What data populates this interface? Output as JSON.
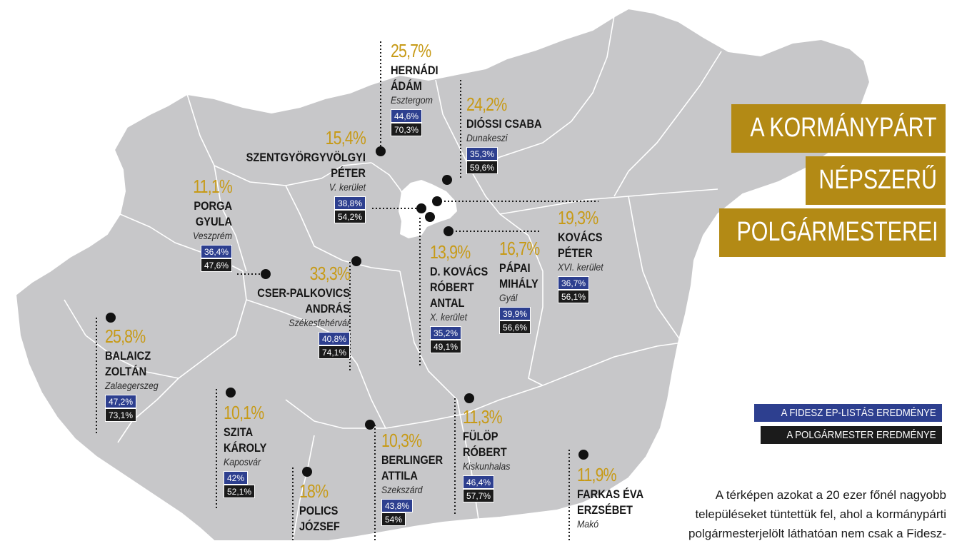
{
  "title": {
    "line1": "A KORMÁNYPÁRT",
    "line2": "NÉPSZERŰ",
    "line3": "POLGÁRMESTEREI"
  },
  "legend": {
    "ep": "A FIDESZ EP-LISTÁS EREDMÉNYE",
    "mayor": "A POLGÁRMESTER EREDMÉNYE"
  },
  "description": {
    "line1": "A térképen azokat a 20 ezer főnél nagyobb",
    "line2": "településeket tüntettük fel, ahol a kormánypárti",
    "line3": "polgármesterjelölt láthatóan nem csak a Fidesz-"
  },
  "colors": {
    "map_fill": "#c7c7c9",
    "percent_gold": "#c79a16",
    "ep_blue": "#2d3f8f",
    "mayor_black": "#1b1b1b",
    "title_gold": "#b38a15"
  },
  "mayors": [
    {
      "pct": "25,7%",
      "name1": "HERNÁDI",
      "name2": "ÁDÁM",
      "place": "Esztergom",
      "ep": "44,6%",
      "mayor": "70,3%"
    },
    {
      "pct": "24,2%",
      "name1": "DIÓSSI CSABA",
      "place": "Dunakeszi",
      "ep": "35,3%",
      "mayor": "59,6%"
    },
    {
      "pct": "15,4%",
      "name1": "SZENTGYÖRGYVÖLGYI",
      "name2": "PÉTER",
      "place": "V. kerület",
      "ep": "38,8%",
      "mayor": "54,2%"
    },
    {
      "pct": "11,1%",
      "name1": "PORGA",
      "name2": "GYULA",
      "place": "Veszprém",
      "ep": "36,4%",
      "mayor": "47,6%"
    },
    {
      "pct": "19,3%",
      "name1": "KOVÁCS",
      "name2": "PÉTER",
      "place": "XVI. kerület",
      "ep": "36,7%",
      "mayor": "56,1%"
    },
    {
      "pct": "33,3%",
      "name1": "CSER-PALKOVICS",
      "name2": "ANDRÁS",
      "place": "Székesfehérvár",
      "ep": "40,8%",
      "mayor": "74,1%"
    },
    {
      "pct": "13,9%",
      "name1": "D. KOVÁCS",
      "name2": "RÓBERT",
      "name3": "ANTAL",
      "place": "X. kerület",
      "ep": "35,2%",
      "mayor": "49,1%"
    },
    {
      "pct": "16,7%",
      "name1": "PÁPAI",
      "name2": "MIHÁLY",
      "place": "Gyál",
      "ep": "39,9%",
      "mayor": "56,6%"
    },
    {
      "pct": "25,8%",
      "name1": "BALAICZ",
      "name2": "ZOLTÁN",
      "place": "Zalaegerszeg",
      "ep": "47,2%",
      "mayor": "73,1%"
    },
    {
      "pct": "10,1%",
      "name1": "SZITA",
      "name2": "KÁROLY",
      "place": "Kaposvár",
      "ep": "42%",
      "mayor": "52,1%"
    },
    {
      "pct": "11,3%",
      "name1": "FÜLÖP",
      "name2": "RÓBERT",
      "place": "Kiskunhalas",
      "ep": "46,4%",
      "mayor": "57,7%"
    },
    {
      "pct": "10,3%",
      "name1": "BERLINGER",
      "name2": "ATTILA",
      "place": "Szekszárd",
      "ep": "43,8%",
      "mayor": "54%"
    },
    {
      "pct": "18%",
      "name1": "POLICS",
      "name2": "JÓZSEF"
    },
    {
      "pct": "11,9%",
      "name1": "FARKAS ÉVA",
      "name2": "ERZSÉBET",
      "place": "Makó"
    }
  ]
}
